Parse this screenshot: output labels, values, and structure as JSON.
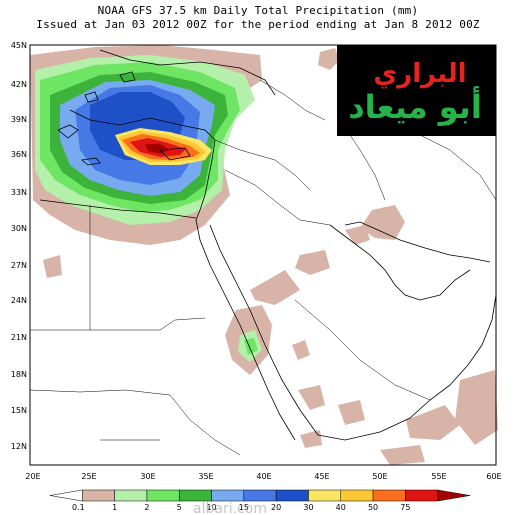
{
  "title": {
    "line1": "NOAA GFS 37.5 km Daily Total Precipitation (mm)",
    "line2": "Issued at Jan 03 2012 00Z for the period ending at Jan 8 2012 00Z"
  },
  "axes": {
    "lat_labels": [
      "45N",
      "42N",
      "39N",
      "36N",
      "33N",
      "30N",
      "27N",
      "24N",
      "21N",
      "18N",
      "15N",
      "12N"
    ],
    "lon_labels": [
      "20E",
      "25E",
      "30E",
      "35E",
      "40E",
      "45E",
      "50E",
      "55E",
      "60E"
    ]
  },
  "logo": {
    "line1": "البراري",
    "line2": "أبو ميعاد",
    "bg_color": "#000000",
    "line1_color": "#e8231e",
    "line2_color": "#25b34a"
  },
  "colorbar": {
    "labels": [
      "0.1",
      "1",
      "2",
      "5",
      "10",
      "15",
      "20",
      "30",
      "40",
      "50",
      "75"
    ],
    "colors": [
      "#ffffff",
      "#d8b4a8",
      "#b4f0aa",
      "#6ee664",
      "#3cb43c",
      "#78aaf0",
      "#4678e6",
      "#1e50c8",
      "#fae664",
      "#fac832",
      "#fa6e1e",
      "#e11414",
      "#a50000"
    ]
  },
  "watermark": "albari.com",
  "colors": {
    "land": "#ffffff",
    "light_brown": "#d8b4a8",
    "light_green": "#b4f0aa",
    "green": "#6ee664"
  }
}
